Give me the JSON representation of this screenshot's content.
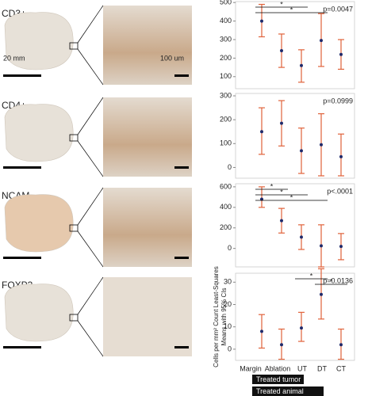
{
  "panels": [
    {
      "label": "CD3+"
    },
    {
      "label": "CD4+"
    },
    {
      "label": "NCAM"
    },
    {
      "label": "FOXP3"
    }
  ],
  "scale_bars": {
    "overview": "20 mm",
    "inset": "100 um"
  },
  "chart_data": [
    {
      "type": "errorbar",
      "annotation": "p=0.0047",
      "categories": [
        null,
        null,
        null,
        null,
        null
      ],
      "series": [
        {
          "color": "#1f2a6b",
          "ci_color": "#e0623a",
          "values": [
            400,
            240,
            160,
            295,
            220
          ],
          "ci_low": [
            315,
            150,
            70,
            155,
            140
          ],
          "ci_high": [
            490,
            330,
            245,
            440,
            300
          ]
        }
      ],
      "ylim": [
        35,
        505
      ],
      "yticks": [
        100,
        200,
        300,
        400,
        500
      ],
      "comparisons": [
        {
          "groups": [
            "Margin",
            "UT"
          ],
          "label": "*"
        },
        {
          "groups": [
            "Margin",
            "DT"
          ],
          "label": "*"
        }
      ]
    },
    {
      "type": "errorbar",
      "annotation": "p=0.0999",
      "categories": [
        null,
        null,
        null,
        null,
        null
      ],
      "series": [
        {
          "color": "#1f2a6b",
          "ci_color": "#e0623a",
          "values": [
            150,
            185,
            70,
            95,
            45
          ],
          "ci_low": [
            55,
            90,
            -25,
            -35,
            -35
          ],
          "ci_high": [
            250,
            280,
            165,
            225,
            140
          ]
        }
      ],
      "ylim": [
        -45,
        310
      ],
      "yticks": [
        0,
        100,
        200,
        300
      ],
      "comparisons": []
    },
    {
      "type": "errorbar",
      "annotation": "p<.0001",
      "categories": [
        null,
        null,
        null,
        null,
        null
      ],
      "series": [
        {
          "color": "#1f2a6b",
          "ci_color": "#e0623a",
          "values": [
            480,
            270,
            110,
            25,
            20
          ],
          "ci_low": [
            400,
            150,
            -10,
            -180,
            -110
          ],
          "ci_high": [
            600,
            390,
            230,
            230,
            145
          ]
        }
      ],
      "ylim": [
        -180,
        630
      ],
      "yticks": [
        0,
        200,
        400,
        600
      ],
      "comparisons": [
        {
          "groups": [
            "Margin",
            "Ablation"
          ],
          "label": "*"
        },
        {
          "groups": [
            "Margin",
            "UT"
          ],
          "label": "*"
        },
        {
          "groups": [
            "Margin",
            "DT"
          ],
          "label": "*"
        }
      ]
    },
    {
      "type": "errorbar",
      "annotation": "p=0.0136",
      "categories": [
        "Margin",
        "Ablation",
        "UT",
        "DT",
        "CT"
      ],
      "ylabel": [
        "Cells per mm² Count Least-Squares",
        "Means with 95% CIs"
      ],
      "series": [
        {
          "color": "#1f2a6b",
          "ci_color": "#e0623a",
          "values": [
            8,
            2,
            9.5,
            24.5,
            2
          ],
          "ci_low": [
            0.5,
            -4.5,
            3.5,
            13.5,
            -4.5
          ],
          "ci_high": [
            15.5,
            9,
            16.5,
            36,
            9
          ]
        }
      ],
      "ylim": [
        -5,
        34
      ],
      "yticks": [
        0,
        10,
        20,
        30
      ],
      "comparisons": [
        {
          "groups": [
            "UT",
            "DT"
          ],
          "label": "*"
        },
        {
          "groups": [
            "DT",
            "CT"
          ],
          "label": "*"
        }
      ],
      "group_labels": [
        {
          "label": "Treated tumor",
          "groups": [
            "Margin",
            "UT"
          ]
        },
        {
          "label": "Treated animal",
          "groups": [
            "Margin",
            "DT"
          ]
        }
      ]
    }
  ]
}
